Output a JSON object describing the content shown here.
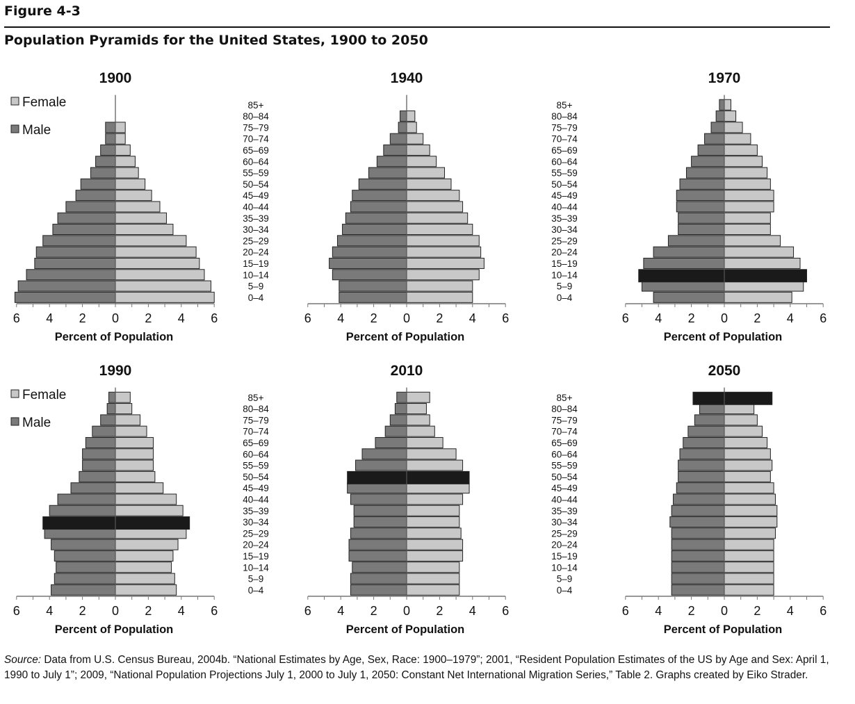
{
  "figure": {
    "label": "Figure 4-3",
    "title": "Population Pyramids for the United States, 1900 to 2050",
    "source_prefix": "Source:",
    "source_text": " Data from U.S. Census Bureau, 2004b. “National Estimates by Age, Sex, Race: 1900–1979”; 2001, “Resident Population Estimates of the US by Age and Sex: April 1, 1990 to July 1”; 2009, “National Population Projections July 1, 2000 to July 1, 2050: Constant Net International Migration Series,” Table 2. Graphs created by Eiko Strader."
  },
  "colors": {
    "female": "#c8c8c8",
    "male": "#7a7a7a",
    "highlight": "#1a1a1a",
    "outline": "#222222"
  },
  "chart_data": [
    {
      "type": "bar",
      "title": "1900",
      "xlabel": "Percent of Population",
      "xlim": [
        -6,
        6
      ],
      "xticks": [
        "6",
        "4",
        "2",
        "0",
        "2",
        "4",
        "6"
      ],
      "categories": [
        "0–4",
        "5–9",
        "10–14",
        "15–19",
        "20–24",
        "25–29",
        "30–34",
        "35–39",
        "40–44",
        "45–49",
        "50–54",
        "55–59",
        "60–64",
        "65–69",
        "70–74",
        "75–79",
        "80–84",
        "85+"
      ],
      "legend": [
        "Female",
        "Male"
      ],
      "series": [
        {
          "name": "Female",
          "values": [
            6.0,
            5.8,
            5.4,
            5.1,
            4.9,
            4.3,
            3.5,
            3.1,
            2.7,
            2.2,
            1.8,
            1.4,
            1.2,
            0.9,
            0.6,
            0.6,
            null,
            null
          ]
        },
        {
          "name": "Male",
          "values": [
            6.1,
            5.9,
            5.4,
            4.9,
            4.8,
            4.4,
            3.8,
            3.5,
            3.0,
            2.4,
            2.1,
            1.5,
            1.2,
            0.9,
            0.6,
            0.6,
            null,
            null
          ]
        }
      ],
      "highlight": null
    },
    {
      "type": "bar",
      "title": "1940",
      "xlabel": "Percent of Population",
      "xlim": [
        -6,
        6
      ],
      "xticks": [
        "6",
        "4",
        "2",
        "0",
        "2",
        "4",
        "6"
      ],
      "categories": [
        "0–4",
        "5–9",
        "10–14",
        "15–19",
        "20–24",
        "25–29",
        "30–34",
        "35–39",
        "40–44",
        "45–49",
        "50–54",
        "55–59",
        "60–64",
        "65–69",
        "70–74",
        "75–79",
        "80–84",
        "85+"
      ],
      "series": [
        {
          "name": "Female",
          "values": [
            4.0,
            4.0,
            4.4,
            4.7,
            4.5,
            4.4,
            4.0,
            3.7,
            3.4,
            3.2,
            2.7,
            2.3,
            1.8,
            1.4,
            1.0,
            0.6,
            0.5,
            null
          ]
        },
        {
          "name": "Male",
          "values": [
            4.1,
            4.1,
            4.5,
            4.7,
            4.5,
            4.2,
            3.9,
            3.7,
            3.4,
            3.3,
            2.9,
            2.3,
            1.8,
            1.4,
            1.0,
            0.5,
            0.4,
            null
          ]
        }
      ],
      "highlight": null
    },
    {
      "type": "bar",
      "title": "1970",
      "xlabel": "Percent of Population",
      "xlim": [
        -6,
        6
      ],
      "xticks": [
        "6",
        "4",
        "2",
        "0",
        "2",
        "4",
        "6"
      ],
      "categories": [
        "0–4",
        "5–9",
        "10–14",
        "15–19",
        "20–24",
        "25–29",
        "30–34",
        "35–39",
        "40–44",
        "45–49",
        "50–54",
        "55–59",
        "60–64",
        "65–69",
        "70–74",
        "75–79",
        "80–84",
        "85+"
      ],
      "series": [
        {
          "name": "Female",
          "values": [
            4.1,
            4.8,
            5.0,
            4.6,
            4.2,
            3.4,
            2.8,
            2.8,
            3.0,
            3.0,
            2.8,
            2.6,
            2.3,
            2.0,
            1.6,
            1.1,
            0.7,
            0.4
          ]
        },
        {
          "name": "Male",
          "values": [
            4.3,
            5.0,
            5.2,
            4.9,
            4.3,
            3.4,
            2.8,
            2.8,
            2.9,
            2.9,
            2.7,
            2.3,
            2.0,
            1.6,
            1.2,
            0.8,
            0.5,
            0.3
          ]
        }
      ],
      "highlight": "10–14"
    },
    {
      "type": "bar",
      "title": "1990",
      "xlabel": "Percent of Population",
      "xlim": [
        -6,
        6
      ],
      "xticks": [
        "6",
        "4",
        "2",
        "0",
        "2",
        "4",
        "6"
      ],
      "categories": [
        "0–4",
        "5–9",
        "10–14",
        "15–19",
        "20–24",
        "25–29",
        "30–34",
        "35–39",
        "40–44",
        "45–49",
        "50–54",
        "55–59",
        "60–64",
        "65–69",
        "70–74",
        "75–79",
        "80–84",
        "85+"
      ],
      "legend": [
        "Female",
        "Male"
      ],
      "series": [
        {
          "name": "Female",
          "values": [
            3.7,
            3.6,
            3.4,
            3.5,
            3.8,
            4.3,
            4.5,
            4.1,
            3.7,
            2.9,
            2.4,
            2.3,
            2.3,
            2.3,
            1.9,
            1.5,
            1.0,
            0.9
          ]
        },
        {
          "name": "Male",
          "values": [
            3.9,
            3.7,
            3.6,
            3.7,
            3.9,
            4.3,
            4.4,
            4.0,
            3.5,
            2.7,
            2.2,
            2.0,
            2.0,
            1.8,
            1.4,
            0.9,
            0.5,
            0.4
          ]
        }
      ],
      "highlight": "30–34"
    },
    {
      "type": "bar",
      "title": "2010",
      "xlabel": "Percent of Population",
      "xlim": [
        -6,
        6
      ],
      "xticks": [
        "6",
        "4",
        "2",
        "0",
        "2",
        "4",
        "6"
      ],
      "categories": [
        "0–4",
        "5–9",
        "10–14",
        "15–19",
        "20–24",
        "25–29",
        "30–34",
        "35–39",
        "40–44",
        "45–49",
        "50–54",
        "55–59",
        "60–64",
        "65–69",
        "70–74",
        "75–79",
        "80–84",
        "85+"
      ],
      "series": [
        {
          "name": "Female",
          "values": [
            3.2,
            3.2,
            3.2,
            3.4,
            3.4,
            3.3,
            3.2,
            3.2,
            3.4,
            3.8,
            3.8,
            3.4,
            3.0,
            2.2,
            1.7,
            1.4,
            1.2,
            1.4
          ]
        },
        {
          "name": "Male",
          "values": [
            3.4,
            3.4,
            3.3,
            3.5,
            3.5,
            3.4,
            3.2,
            3.2,
            3.4,
            3.6,
            3.6,
            3.1,
            2.7,
            1.9,
            1.3,
            1.0,
            0.7,
            0.6
          ]
        }
      ],
      "highlight": "50–54"
    },
    {
      "type": "bar",
      "title": "2050",
      "xlabel": "Percent of Population",
      "xlim": [
        -6,
        6
      ],
      "xticks": [
        "6",
        "4",
        "2",
        "0",
        "2",
        "4",
        "6"
      ],
      "categories": [
        "0–4",
        "5–9",
        "10–14",
        "15–19",
        "20–24",
        "25–29",
        "30–34",
        "35–39",
        "40–44",
        "45–49",
        "50–54",
        "55–59",
        "60–64",
        "65–69",
        "70–74",
        "75–79",
        "80–84",
        "85+"
      ],
      "series": [
        {
          "name": "Female",
          "values": [
            3.0,
            3.0,
            3.0,
            3.0,
            3.0,
            3.1,
            3.2,
            3.2,
            3.1,
            3.0,
            2.8,
            2.9,
            2.8,
            2.6,
            2.3,
            2.0,
            1.8,
            2.9
          ]
        },
        {
          "name": "Male",
          "values": [
            3.2,
            3.2,
            3.2,
            3.2,
            3.2,
            3.2,
            3.3,
            3.2,
            3.1,
            2.9,
            2.8,
            2.8,
            2.7,
            2.5,
            2.2,
            1.8,
            1.5,
            1.9
          ]
        }
      ],
      "highlight": "85+"
    }
  ]
}
